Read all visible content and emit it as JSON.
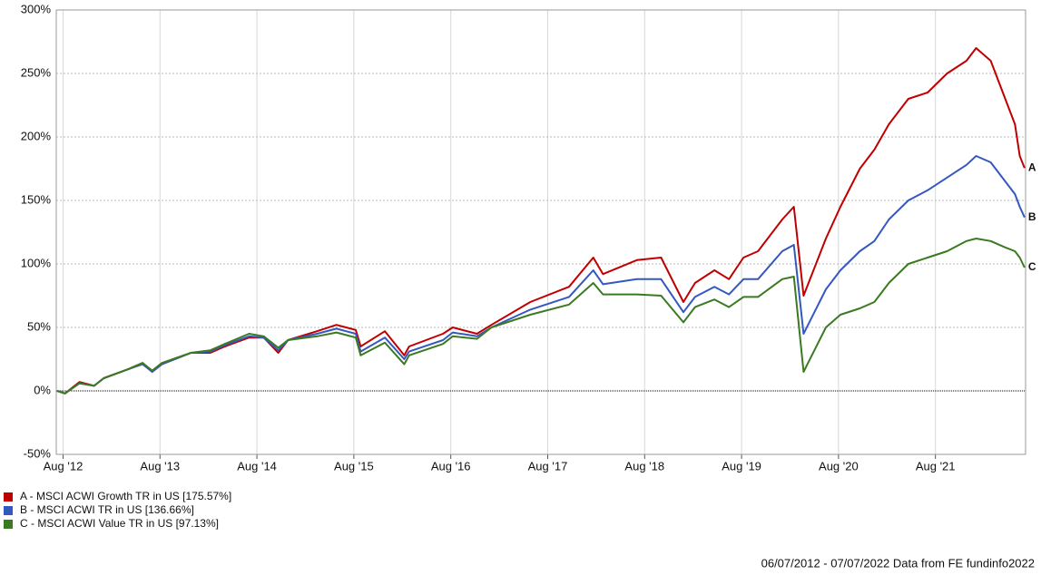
{
  "chart_data": {
    "type": "line",
    "x": [
      2012.52,
      2012.6,
      2012.75,
      2012.9,
      2013.0,
      2013.25,
      2013.4,
      2013.5,
      2013.6,
      2013.9,
      2014.1,
      2014.25,
      2014.5,
      2014.65,
      2014.8,
      2014.9,
      2015.2,
      2015.4,
      2015.6,
      2015.65,
      2015.9,
      2016.1,
      2016.15,
      2016.5,
      2016.6,
      2016.85,
      2017.0,
      2017.4,
      2017.8,
      2018.05,
      2018.15,
      2018.5,
      2018.75,
      2018.98,
      2019.1,
      2019.3,
      2019.45,
      2019.6,
      2019.75,
      2020.0,
      2020.12,
      2020.22,
      2020.45,
      2020.6,
      2020.8,
      2020.95,
      2021.1,
      2021.3,
      2021.5,
      2021.7,
      2021.9,
      2022.0,
      2022.15,
      2022.3,
      2022.4,
      2022.45,
      2022.5
    ],
    "series": [
      {
        "name": "A - MSCI ACWI Growth TR in US [175.57%]",
        "end_label": "A",
        "color": "#c00000",
        "values": [
          0,
          -2,
          7,
          4,
          10,
          17,
          22,
          15,
          21,
          30,
          30,
          35,
          42,
          42,
          30,
          40,
          47,
          52,
          48,
          35,
          47,
          28,
          35,
          45,
          50,
          45,
          52,
          70,
          82,
          105,
          92,
          103,
          105,
          70,
          85,
          95,
          88,
          105,
          110,
          135,
          145,
          75,
          120,
          145,
          175,
          190,
          210,
          230,
          235,
          250,
          260,
          270,
          260,
          230,
          210,
          185,
          175.57
        ]
      },
      {
        "name": "B - MSCI ACWI TR in US [136.66%]",
        "end_label": "B",
        "color": "#3558c0",
        "values": [
          0,
          -2,
          6,
          4,
          10,
          17,
          21,
          15,
          21,
          30,
          31,
          36,
          43,
          42,
          32,
          40,
          45,
          49,
          45,
          31,
          42,
          25,
          31,
          40,
          46,
          43,
          50,
          64,
          74,
          95,
          84,
          88,
          88,
          62,
          74,
          82,
          76,
          88,
          88,
          110,
          115,
          45,
          80,
          95,
          110,
          118,
          135,
          150,
          158,
          168,
          178,
          185,
          180,
          165,
          155,
          145,
          136.66
        ]
      },
      {
        "name": "C - MSCI ACWI Value TR in US [97.13%]",
        "end_label": "C",
        "color": "#3a7a20",
        "values": [
          0,
          -2,
          6,
          4,
          10,
          17,
          22,
          16,
          22,
          30,
          32,
          37,
          45,
          43,
          34,
          40,
          43,
          46,
          42,
          28,
          38,
          21,
          28,
          37,
          43,
          41,
          50,
          60,
          68,
          85,
          76,
          76,
          75,
          54,
          66,
          72,
          66,
          74,
          74,
          88,
          90,
          15,
          50,
          60,
          65,
          70,
          85,
          100,
          105,
          110,
          118,
          120,
          118,
          113,
          110,
          105,
          97.13
        ]
      }
    ],
    "xlim": [
      2012.51,
      2022.51
    ],
    "xticks": [
      {
        "value": 2012.58,
        "label": "Aug '12"
      },
      {
        "value": 2013.58,
        "label": "Aug '13"
      },
      {
        "value": 2014.58,
        "label": "Aug '14"
      },
      {
        "value": 2015.58,
        "label": "Aug '15"
      },
      {
        "value": 2016.58,
        "label": "Aug '16"
      },
      {
        "value": 2017.58,
        "label": "Aug '17"
      },
      {
        "value": 2018.58,
        "label": "Aug '18"
      },
      {
        "value": 2019.58,
        "label": "Aug '19"
      },
      {
        "value": 2020.58,
        "label": "Aug '20"
      },
      {
        "value": 2021.58,
        "label": "Aug '21"
      }
    ],
    "ylim": [
      -50,
      300
    ],
    "yticks": [
      {
        "value": -50,
        "label": "-50%"
      },
      {
        "value": 0,
        "label": "0%"
      },
      {
        "value": 50,
        "label": "50%"
      },
      {
        "value": 100,
        "label": "100%"
      },
      {
        "value": 150,
        "label": "150%"
      },
      {
        "value": 200,
        "label": "200%"
      },
      {
        "value": 250,
        "label": "250%"
      },
      {
        "value": 300,
        "label": "300%"
      }
    ],
    "grid": true,
    "footer": "06/07/2012 - 07/07/2022 Data from FE fundinfo2022"
  }
}
